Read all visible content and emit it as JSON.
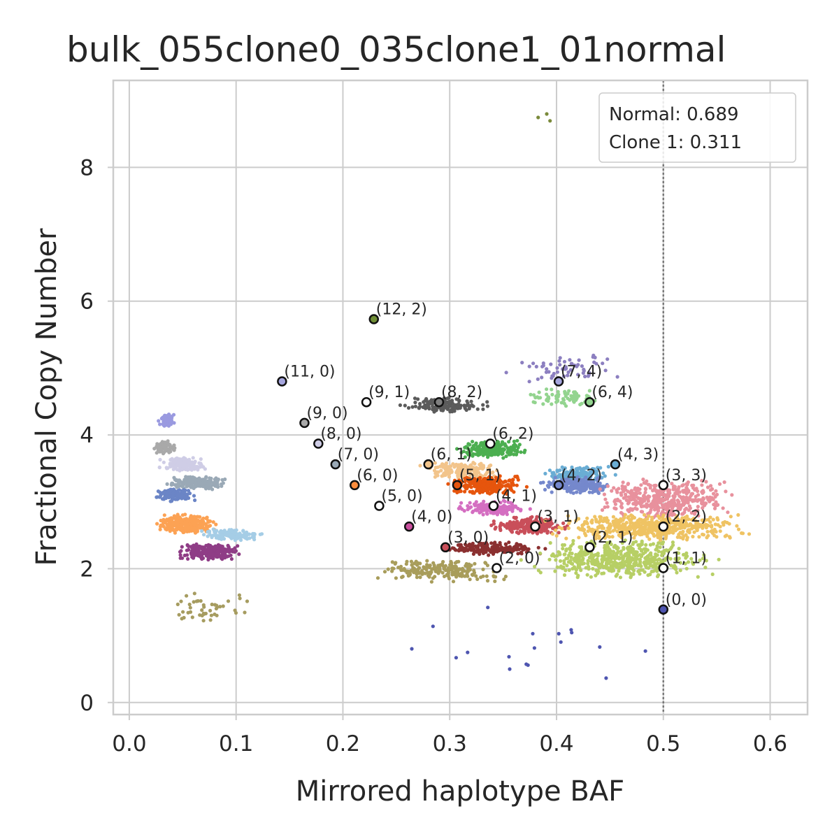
{
  "chart_data": {
    "type": "scatter",
    "title": "bulk_055clone0_035clone1_01normal",
    "xlabel": "Mirrored haplotype BAF",
    "ylabel": "Fractional Copy Number",
    "xlim": [
      -0.015,
      0.635
    ],
    "ylim": [
      -0.18,
      9.3
    ],
    "x_ticks": [
      0.0,
      0.1,
      0.2,
      0.3,
      0.4,
      0.5,
      0.6
    ],
    "x_tick_labels": [
      "0.0",
      "0.1",
      "0.2",
      "0.3",
      "0.4",
      "0.5",
      "0.6"
    ],
    "y_ticks": [
      0,
      2,
      4,
      6,
      8
    ],
    "y_tick_labels": [
      "0",
      "2",
      "4",
      "6",
      "8"
    ],
    "grid": true,
    "reference_line": {
      "x": 0.5,
      "style": "dotted",
      "color": "#7a7a7a"
    },
    "legend": {
      "placement": "top-right",
      "lines": [
        "Normal: 0.689",
        "Clone 1: 0.311"
      ]
    },
    "clusters": [
      {
        "color": "#9a9ae0",
        "x": [
          0.025,
          0.045
        ],
        "y": [
          4.12,
          4.32
        ],
        "n": 90
      },
      {
        "color": "#a9a9a9",
        "x": [
          0.02,
          0.045
        ],
        "y": [
          3.72,
          3.92
        ],
        "n": 90
      },
      {
        "color": "#cfcde6",
        "x": [
          0.025,
          0.075
        ],
        "y": [
          3.45,
          3.68
        ],
        "n": 160
      },
      {
        "color": "#9aa9b6",
        "x": [
          0.025,
          0.1
        ],
        "y": [
          3.18,
          3.38
        ],
        "n": 180
      },
      {
        "color": "#6b85c6",
        "x": [
          0.02,
          0.065
        ],
        "y": [
          3.0,
          3.2
        ],
        "n": 140
      },
      {
        "color": "#fca254",
        "x": [
          0.02,
          0.085
        ],
        "y": [
          2.52,
          2.82
        ],
        "n": 280
      },
      {
        "color": "#a5cde6",
        "x": [
          0.06,
          0.13
        ],
        "y": [
          2.42,
          2.6
        ],
        "n": 120
      },
      {
        "color": "#8f3d86",
        "x": [
          0.04,
          0.11
        ],
        "y": [
          2.12,
          2.38
        ],
        "n": 230
      },
      {
        "color": "#a69c60",
        "x": [
          0.03,
          0.12
        ],
        "y": [
          1.2,
          1.7
        ],
        "n": 45
      },
      {
        "color": "#5b5b5b",
        "x": [
          0.25,
          0.34
        ],
        "y": [
          4.32,
          4.56
        ],
        "n": 170
      },
      {
        "color": "#4caf50",
        "x": [
          0.3,
          0.38
        ],
        "y": [
          3.65,
          3.92
        ],
        "n": 210
      },
      {
        "color": "#f2c48b",
        "x": [
          0.26,
          0.36
        ],
        "y": [
          3.35,
          3.6
        ],
        "n": 160
      },
      {
        "color": "#e6550d",
        "x": [
          0.29,
          0.38
        ],
        "y": [
          3.1,
          3.4
        ],
        "n": 240
      },
      {
        "color": "#6aadd4",
        "x": [
          0.38,
          0.46
        ],
        "y": [
          3.3,
          3.55
        ],
        "n": 140
      },
      {
        "color": "#7588cc",
        "x": [
          0.38,
          0.46
        ],
        "y": [
          3.12,
          3.38
        ],
        "n": 220
      },
      {
        "color": "#e8919d",
        "x": [
          0.42,
          0.58
        ],
        "y": [
          2.75,
          3.35
        ],
        "n": 420
      },
      {
        "color": "#d46ec1",
        "x": [
          0.3,
          0.38
        ],
        "y": [
          2.8,
          3.02
        ],
        "n": 150
      },
      {
        "color": "#c94f5a",
        "x": [
          0.33,
          0.42
        ],
        "y": [
          2.52,
          2.78
        ],
        "n": 220
      },
      {
        "color": "#efc363",
        "x": [
          0.38,
          0.6
        ],
        "y": [
          2.42,
          2.82
        ],
        "n": 520
      },
      {
        "color": "#8b3030",
        "x": [
          0.28,
          0.4
        ],
        "y": [
          2.2,
          2.4
        ],
        "n": 180
      },
      {
        "color": "#b7cf65",
        "x": [
          0.36,
          0.56
        ],
        "y": [
          1.85,
          2.45
        ],
        "n": 520
      },
      {
        "color": "#a89d5b",
        "x": [
          0.22,
          0.36
        ],
        "y": [
          1.8,
          2.15
        ],
        "n": 200
      },
      {
        "color": "#8c7fc0",
        "x": [
          0.35,
          0.47
        ],
        "y": [
          4.78,
          5.2
        ],
        "n": 60
      },
      {
        "color": "#93d48f",
        "x": [
          0.36,
          0.45
        ],
        "y": [
          4.42,
          4.7
        ],
        "n": 70
      },
      {
        "color": "#7a8a3a",
        "x": [
          0.362,
          0.4
        ],
        "y": [
          8.65,
          8.95
        ],
        "n": 3
      },
      {
        "color": "#4e55b0",
        "x": [
          0.22,
          0.53
        ],
        "y": [
          0.25,
          1.5
        ],
        "n": 18
      }
    ],
    "centers": [
      {
        "label": "(12, 2)",
        "x": 0.229,
        "y": 5.73,
        "color": "#6f8e35"
      },
      {
        "label": "(11, 0)",
        "x": 0.143,
        "y": 4.8,
        "color": "#a6a6de"
      },
      {
        "label": "(7, 4)",
        "x": 0.402,
        "y": 4.8,
        "color": "#a6a6de"
      },
      {
        "label": "(9, 1)",
        "x": 0.222,
        "y": 4.49,
        "color": "#ffffff"
      },
      {
        "label": "(8, 2)",
        "x": 0.29,
        "y": 4.49,
        "color": "#7f7f7f"
      },
      {
        "label": "(6, 4)",
        "x": 0.431,
        "y": 4.49,
        "color": "#93d48f"
      },
      {
        "label": "(9, 0)",
        "x": 0.164,
        "y": 4.18,
        "color": "#a9a9a9"
      },
      {
        "label": "(8, 0)",
        "x": 0.177,
        "y": 3.87,
        "color": "#cfcde6"
      },
      {
        "label": "(6, 2)",
        "x": 0.338,
        "y": 3.87,
        "color": "#ffffff"
      },
      {
        "label": "(7, 0)",
        "x": 0.193,
        "y": 3.56,
        "color": "#9aa9b6"
      },
      {
        "label": "(6, 1)",
        "x": 0.28,
        "y": 3.56,
        "color": "#f2c48b"
      },
      {
        "label": "(4, 3)",
        "x": 0.455,
        "y": 3.56,
        "color": "#6aadd4"
      },
      {
        "label": "(6, 0)",
        "x": 0.211,
        "y": 3.25,
        "color": "#fc8d3c"
      },
      {
        "label": "(5, 1)",
        "x": 0.307,
        "y": 3.25,
        "color": "#e6550d"
      },
      {
        "label": "(4, 2)",
        "x": 0.402,
        "y": 3.25,
        "color": "#7588cc"
      },
      {
        "label": "(3, 3)",
        "x": 0.5,
        "y": 3.25,
        "color": "#ffffff"
      },
      {
        "label": "(5, 0)",
        "x": 0.234,
        "y": 2.94,
        "color": "#ffffff"
      },
      {
        "label": "(4, 1)",
        "x": 0.341,
        "y": 2.94,
        "color": "#ffffff"
      },
      {
        "label": "(4, 0)",
        "x": 0.262,
        "y": 2.63,
        "color": "#c94f9e"
      },
      {
        "label": "(3, 1)",
        "x": 0.38,
        "y": 2.63,
        "color": "#ffffff"
      },
      {
        "label": "(2, 2)",
        "x": 0.5,
        "y": 2.63,
        "color": "#ffffff"
      },
      {
        "label": "(3, 0)",
        "x": 0.296,
        "y": 2.32,
        "color": "#c94f5a"
      },
      {
        "label": "(2, 1)",
        "x": 0.431,
        "y": 2.32,
        "color": "#ffffff"
      },
      {
        "label": "(2, 0)",
        "x": 0.344,
        "y": 2.01,
        "color": "#ffffff"
      },
      {
        "label": "(1, 1)",
        "x": 0.5,
        "y": 2.01,
        "color": "#ffffff"
      },
      {
        "label": "(0, 0)",
        "x": 0.5,
        "y": 1.39,
        "color": "#4e55b0"
      }
    ]
  }
}
